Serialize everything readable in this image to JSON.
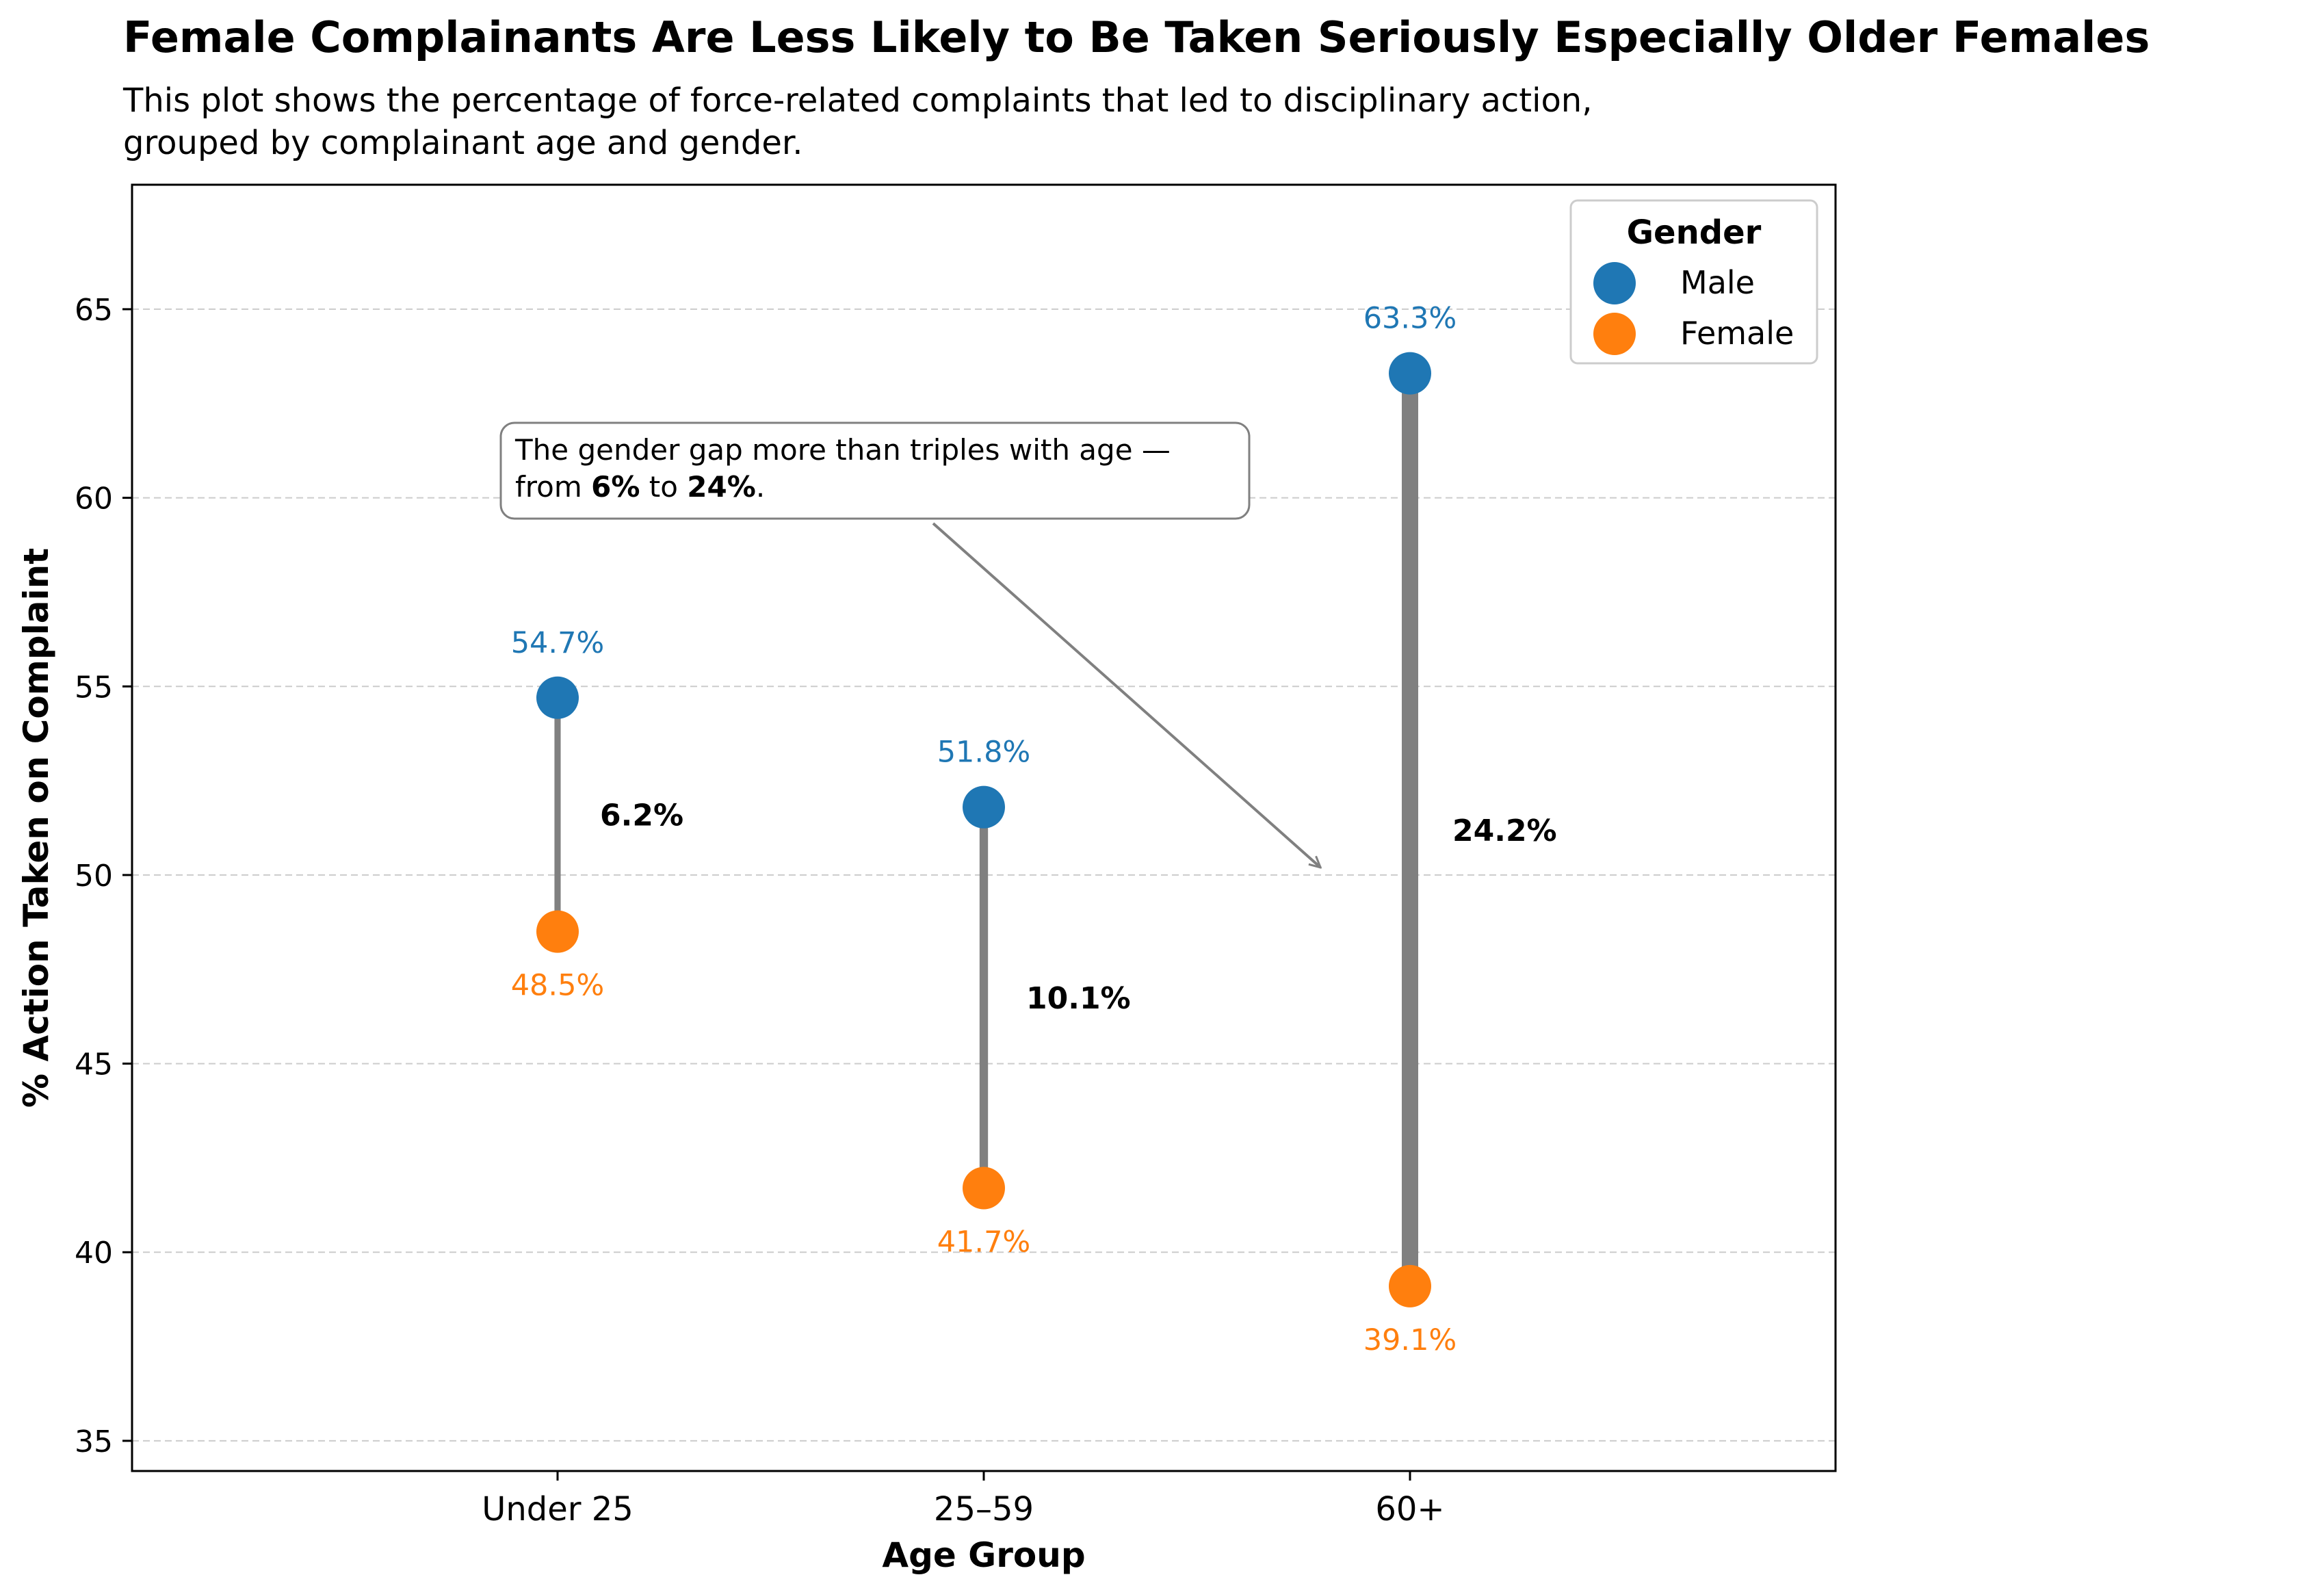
{
  "chart_data": {
    "type": "dumbbell",
    "title": "Female Complainants Are Less Likely to Be Taken Seriously Especially Older Females",
    "subtitle_lines": [
      "This plot shows the percentage of force-related complaints that led to disciplinary action,",
      "grouped by complainant age and gender."
    ],
    "xlabel": "Age Group",
    "ylabel": "% Action Taken on Complaint",
    "ylim": [
      34.2,
      68.3
    ],
    "yticks": [
      "35",
      "40",
      "45",
      "50",
      "55",
      "60",
      "65"
    ],
    "grid": "y-dashed",
    "categories": [
      "Under 25",
      "25–59",
      "60+"
    ],
    "series": [
      {
        "name": "Male",
        "color": "#1f77b4",
        "values": [
          54.7,
          51.8,
          63.3
        ],
        "labels": [
          "54.7%",
          "51.8%",
          "63.3%"
        ]
      },
      {
        "name": "Female",
        "color": "#ff7f0e",
        "values": [
          48.5,
          41.7,
          39.1
        ],
        "labels": [
          "48.5%",
          "41.7%",
          "39.1%"
        ]
      }
    ],
    "gap_labels": [
      "6.2%",
      "10.1%",
      "24.2%"
    ],
    "gap_values": [
      6.2,
      10.1,
      24.2
    ],
    "legend": {
      "title": "Gender",
      "placement": "top-right"
    },
    "annotation": {
      "line1": "The gender gap more than triples with age —",
      "line2_prefix": "from ",
      "line2_bold1": "6%",
      "line2_mid": " to ",
      "line2_bold2": "24%",
      "line2_suffix": ".",
      "arrow_target": {
        "category_position": 1.79,
        "value": 50.2
      }
    },
    "connector_color": "#808080"
  }
}
